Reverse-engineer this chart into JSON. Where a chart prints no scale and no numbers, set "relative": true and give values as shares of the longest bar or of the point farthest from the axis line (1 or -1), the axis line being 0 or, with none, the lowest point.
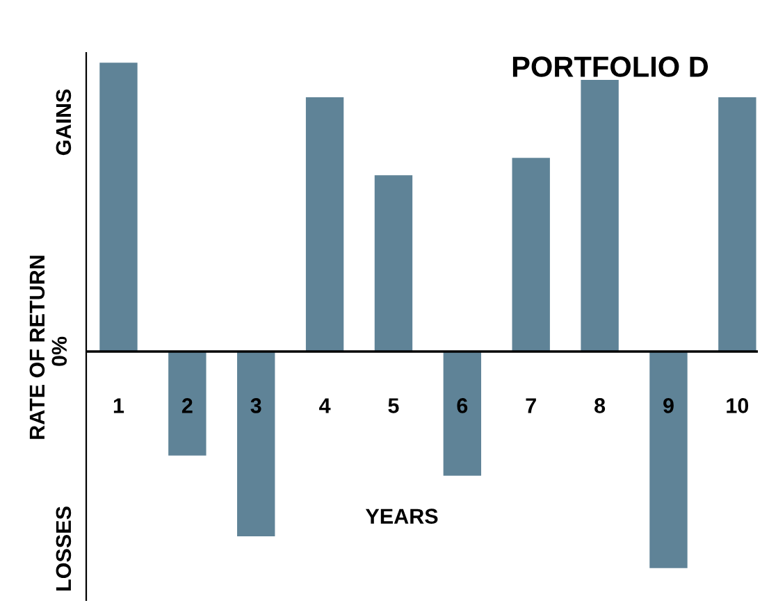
{
  "chart_data": {
    "type": "bar",
    "title": "PORTFOLIO D",
    "xlabel": "YEARS",
    "ylabel": "RATE OF RETURN",
    "annotations": [
      "GAINS",
      "0%",
      "LOSSES"
    ],
    "categories": [
      "1",
      "2",
      "3",
      "4",
      "5",
      "6",
      "7",
      "8",
      "9",
      "10"
    ],
    "values": [
      1,
      -0.36,
      -0.64,
      0.88,
      0.61,
      -0.43,
      0.67,
      0.94,
      -0.75,
      0.88
    ],
    "color": "#5f8397",
    "relative": true
  }
}
